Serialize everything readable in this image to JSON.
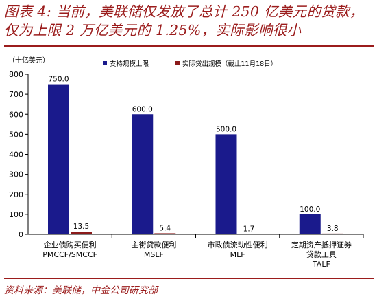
{
  "title": "图表 4: 当前，美联储仅发放了总计 250 亿美元的贷款，仅为上限 2 万亿美元的 1.25%，实际影响很小",
  "source": "资料来源：美联储，中金公司研究部",
  "chart_data": {
    "type": "bar",
    "ylabel": "（十亿美元）",
    "ylim": [
      0,
      800
    ],
    "yticks": [
      0,
      100,
      200,
      300,
      400,
      500,
      600,
      700,
      800
    ],
    "grid": false,
    "legend_position": "top-right",
    "categories": [
      [
        "企业债购买便利",
        "PMCCF/SMCCF"
      ],
      [
        "主街贷款便利",
        "MSLF"
      ],
      [
        "市政债流动性便利",
        "MLF"
      ],
      [
        "定期资产抵押证券",
        "贷款工具",
        "TALF"
      ]
    ],
    "series": [
      {
        "name": "支持规模上限",
        "color": "#1a1a8c",
        "values": [
          750.0,
          600.0,
          500.0,
          100.0
        ],
        "labels": [
          "750.0",
          "600.0",
          "500.0",
          "100.0"
        ]
      },
      {
        "name": "实际贷出规模（截止11月18日）",
        "color": "#8b1a1a",
        "values": [
          13.5,
          5.4,
          1.7,
          3.8
        ],
        "labels": [
          "13.5",
          "5.4",
          "1.7",
          "3.8"
        ]
      }
    ]
  }
}
